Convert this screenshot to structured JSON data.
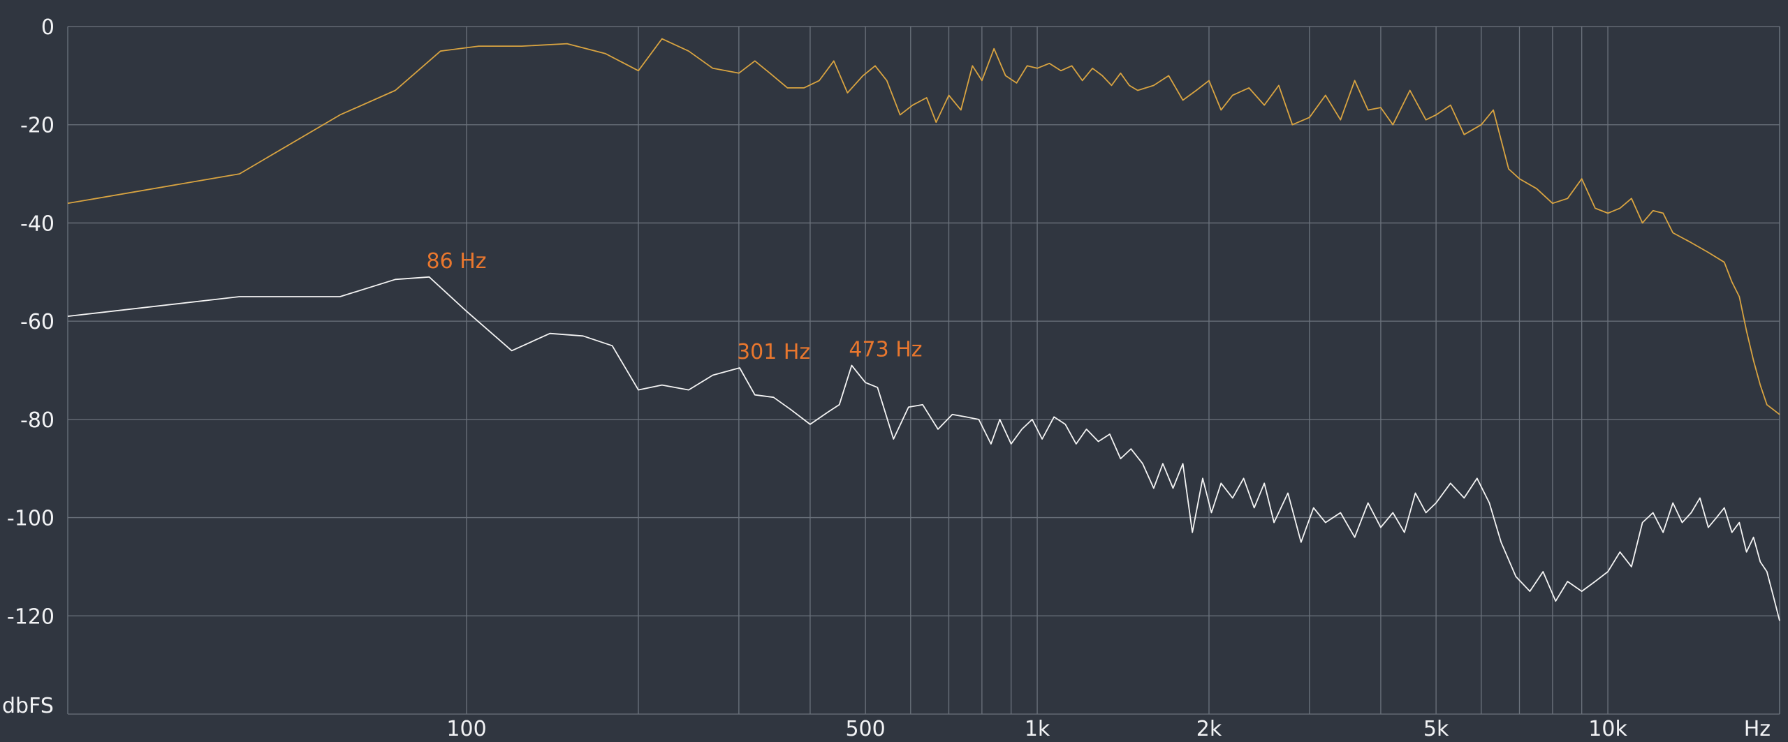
{
  "chart_data": {
    "type": "line",
    "title": "",
    "xlabel": "Hz",
    "ylabel": "dbFS",
    "x_scale": "log",
    "xlim": [
      20,
      20000
    ],
    "ylim": [
      -140,
      0
    ],
    "grid": true,
    "x_gridlines": [
      100,
      200,
      300,
      400,
      500,
      600,
      700,
      800,
      900,
      1000,
      2000,
      3000,
      4000,
      5000,
      6000,
      7000,
      8000,
      9000,
      10000,
      20000
    ],
    "x_ticks": [
      {
        "value": 100,
        "label": "100"
      },
      {
        "value": 500,
        "label": "500"
      },
      {
        "value": 1000,
        "label": "1k"
      },
      {
        "value": 2000,
        "label": "2k"
      },
      {
        "value": 5000,
        "label": "5k"
      },
      {
        "value": 10000,
        "label": "10k"
      },
      {
        "value": 20000,
        "label": "Hz"
      }
    ],
    "y_ticks": [
      {
        "value": 0,
        "label": "0"
      },
      {
        "value": -20,
        "label": "-20"
      },
      {
        "value": -40,
        "label": "-40"
      },
      {
        "value": -60,
        "label": "-60"
      },
      {
        "value": -80,
        "label": "-80"
      },
      {
        "value": -100,
        "label": "-100"
      },
      {
        "value": -120,
        "label": "-120"
      },
      {
        "value": -140,
        "label": "dbFS"
      }
    ],
    "colors": {
      "background": "#303640",
      "grid": "#6c737d",
      "tick_text": "#f2f3f5",
      "annotation": "#e9772e"
    },
    "series": [
      {
        "color": "#d9a441",
        "points": [
          [
            20,
            -36
          ],
          [
            40,
            -30
          ],
          [
            60,
            -18
          ],
          [
            75,
            -13
          ],
          [
            90,
            -5
          ],
          [
            105,
            -4
          ],
          [
            125,
            -4
          ],
          [
            150,
            -3.5
          ],
          [
            175,
            -5.5
          ],
          [
            200,
            -9
          ],
          [
            220,
            -2.5
          ],
          [
            245,
            -5
          ],
          [
            270,
            -8.5
          ],
          [
            300,
            -9.5
          ],
          [
            320,
            -7
          ],
          [
            340,
            -9.5
          ],
          [
            365,
            -12.5
          ],
          [
            390,
            -12.5
          ],
          [
            415,
            -11
          ],
          [
            440,
            -7
          ],
          [
            465,
            -13.5
          ],
          [
            495,
            -10
          ],
          [
            520,
            -8
          ],
          [
            545,
            -11
          ],
          [
            575,
            -18
          ],
          [
            605,
            -16
          ],
          [
            640,
            -14.5
          ],
          [
            665,
            -19.5
          ],
          [
            700,
            -14
          ],
          [
            735,
            -17
          ],
          [
            770,
            -8
          ],
          [
            800,
            -11
          ],
          [
            840,
            -4.5
          ],
          [
            880,
            -10
          ],
          [
            920,
            -11.5
          ],
          [
            960,
            -8
          ],
          [
            1000,
            -8.5
          ],
          [
            1050,
            -7.5
          ],
          [
            1100,
            -9
          ],
          [
            1150,
            -8
          ],
          [
            1200,
            -11
          ],
          [
            1250,
            -8.5
          ],
          [
            1300,
            -10
          ],
          [
            1350,
            -12
          ],
          [
            1400,
            -9.5
          ],
          [
            1450,
            -12
          ],
          [
            1500,
            -13
          ],
          [
            1600,
            -12
          ],
          [
            1700,
            -10
          ],
          [
            1800,
            -15
          ],
          [
            1900,
            -13
          ],
          [
            2000,
            -11
          ],
          [
            2100,
            -17
          ],
          [
            2200,
            -14
          ],
          [
            2350,
            -12.5
          ],
          [
            2500,
            -16
          ],
          [
            2650,
            -12
          ],
          [
            2800,
            -20
          ],
          [
            3000,
            -18.5
          ],
          [
            3200,
            -14
          ],
          [
            3400,
            -19
          ],
          [
            3600,
            -11
          ],
          [
            3800,
            -17
          ],
          [
            4000,
            -16.5
          ],
          [
            4200,
            -20
          ],
          [
            4500,
            -13
          ],
          [
            4800,
            -19
          ],
          [
            5000,
            -18
          ],
          [
            5300,
            -16
          ],
          [
            5600,
            -22
          ],
          [
            6000,
            -20
          ],
          [
            6300,
            -17
          ],
          [
            6700,
            -29
          ],
          [
            7000,
            -31
          ],
          [
            7500,
            -33
          ],
          [
            8000,
            -36
          ],
          [
            8500,
            -35
          ],
          [
            9000,
            -31
          ],
          [
            9500,
            -37
          ],
          [
            10000,
            -38
          ],
          [
            10500,
            -37
          ],
          [
            11000,
            -35
          ],
          [
            11500,
            -40
          ],
          [
            12000,
            -37.5
          ],
          [
            12500,
            -38
          ],
          [
            13000,
            -42
          ],
          [
            14000,
            -44
          ],
          [
            15000,
            -46
          ],
          [
            16000,
            -48
          ],
          [
            16500,
            -52
          ],
          [
            17000,
            -55
          ],
          [
            17500,
            -62
          ],
          [
            18000,
            -68
          ],
          [
            18500,
            -73
          ],
          [
            19000,
            -77
          ],
          [
            19500,
            -78
          ],
          [
            20000,
            -79
          ]
        ]
      },
      {
        "color": "#f4f4f4",
        "points": [
          [
            20,
            -59
          ],
          [
            40,
            -55
          ],
          [
            60,
            -55
          ],
          [
            75,
            -51.5
          ],
          [
            86,
            -51
          ],
          [
            100,
            -58
          ],
          [
            120,
            -66
          ],
          [
            140,
            -62.5
          ],
          [
            160,
            -63
          ],
          [
            180,
            -65
          ],
          [
            200,
            -74
          ],
          [
            220,
            -73
          ],
          [
            245,
            -74
          ],
          [
            270,
            -71
          ],
          [
            301,
            -69.5
          ],
          [
            320,
            -75
          ],
          [
            345,
            -75.5
          ],
          [
            370,
            -78
          ],
          [
            400,
            -81
          ],
          [
            430,
            -78.5
          ],
          [
            450,
            -77
          ],
          [
            473,
            -69
          ],
          [
            500,
            -72.5
          ],
          [
            525,
            -73.5
          ],
          [
            560,
            -84
          ],
          [
            595,
            -77.5
          ],
          [
            630,
            -77
          ],
          [
            670,
            -82
          ],
          [
            710,
            -79
          ],
          [
            750,
            -79.5
          ],
          [
            790,
            -80
          ],
          [
            830,
            -85
          ],
          [
            860,
            -80
          ],
          [
            900,
            -85
          ],
          [
            940,
            -82
          ],
          [
            980,
            -80
          ],
          [
            1020,
            -84
          ],
          [
            1070,
            -79.5
          ],
          [
            1120,
            -81
          ],
          [
            1170,
            -85
          ],
          [
            1220,
            -82
          ],
          [
            1280,
            -84.5
          ],
          [
            1340,
            -83
          ],
          [
            1400,
            -88
          ],
          [
            1460,
            -86
          ],
          [
            1530,
            -89
          ],
          [
            1600,
            -94
          ],
          [
            1660,
            -89
          ],
          [
            1730,
            -94
          ],
          [
            1800,
            -89
          ],
          [
            1870,
            -103
          ],
          [
            1950,
            -92
          ],
          [
            2020,
            -99
          ],
          [
            2100,
            -93
          ],
          [
            2200,
            -96
          ],
          [
            2300,
            -92
          ],
          [
            2400,
            -98
          ],
          [
            2500,
            -93
          ],
          [
            2600,
            -101
          ],
          [
            2750,
            -95
          ],
          [
            2900,
            -105
          ],
          [
            3050,
            -98
          ],
          [
            3200,
            -101
          ],
          [
            3400,
            -99
          ],
          [
            3600,
            -104
          ],
          [
            3800,
            -97
          ],
          [
            4000,
            -102
          ],
          [
            4200,
            -99
          ],
          [
            4400,
            -103
          ],
          [
            4600,
            -95
          ],
          [
            4800,
            -99
          ],
          [
            5000,
            -97
          ],
          [
            5300,
            -93
          ],
          [
            5600,
            -96
          ],
          [
            5900,
            -92
          ],
          [
            6200,
            -97
          ],
          [
            6500,
            -105
          ],
          [
            6900,
            -112
          ],
          [
            7300,
            -115
          ],
          [
            7700,
            -111
          ],
          [
            8100,
            -117
          ],
          [
            8500,
            -113
          ],
          [
            9000,
            -115
          ],
          [
            9500,
            -113
          ],
          [
            10000,
            -111
          ],
          [
            10500,
            -107
          ],
          [
            11000,
            -110
          ],
          [
            11500,
            -101
          ],
          [
            12000,
            -99
          ],
          [
            12500,
            -103
          ],
          [
            13000,
            -97
          ],
          [
            13500,
            -101
          ],
          [
            14000,
            -99
          ],
          [
            14500,
            -96
          ],
          [
            15000,
            -102
          ],
          [
            15500,
            -100
          ],
          [
            16000,
            -98
          ],
          [
            16500,
            -103
          ],
          [
            17000,
            -101
          ],
          [
            17500,
            -107
          ],
          [
            18000,
            -104
          ],
          [
            18500,
            -109
          ],
          [
            19000,
            -111
          ],
          [
            19500,
            -116
          ],
          [
            20000,
            -121
          ]
        ]
      }
    ],
    "annotations": [
      {
        "text": "86 Hz",
        "x": 86,
        "y": -51
      },
      {
        "text": "301 Hz",
        "x": 301,
        "y": -69.5
      },
      {
        "text": "473 Hz",
        "x": 473,
        "y": -69
      }
    ]
  }
}
